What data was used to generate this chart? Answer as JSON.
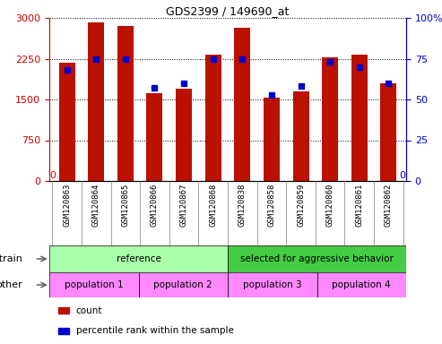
{
  "title": "GDS2399 / 149690_at",
  "samples": [
    "GSM120863",
    "GSM120864",
    "GSM120865",
    "GSM120866",
    "GSM120867",
    "GSM120868",
    "GSM120838",
    "GSM120858",
    "GSM120859",
    "GSM120860",
    "GSM120861",
    "GSM120862"
  ],
  "counts": [
    2175,
    2920,
    2850,
    1620,
    1700,
    2320,
    2820,
    1530,
    1650,
    2280,
    2320,
    1790
  ],
  "percentile_ranks": [
    68,
    75,
    75,
    57,
    60,
    75,
    75,
    53,
    58,
    73,
    70,
    60
  ],
  "ylim_left": [
    0,
    3000
  ],
  "ylim_right": [
    0,
    100
  ],
  "yticks_left": [
    0,
    750,
    1500,
    2250,
    3000
  ],
  "yticks_right": [
    0,
    25,
    50,
    75,
    100
  ],
  "strain_groups": [
    {
      "label": "reference",
      "start": 0,
      "end": 6,
      "color": "#AAFFAA"
    },
    {
      "label": "selected for aggressive behavior",
      "start": 6,
      "end": 12,
      "color": "#44CC44"
    }
  ],
  "other_groups": [
    {
      "label": "population 1",
      "start": 0,
      "end": 3,
      "color": "#FF88FF"
    },
    {
      "label": "population 2",
      "start": 3,
      "end": 6,
      "color": "#FF88FF"
    },
    {
      "label": "population 3",
      "start": 6,
      "end": 9,
      "color": "#FF88FF"
    },
    {
      "label": "population 4",
      "start": 9,
      "end": 12,
      "color": "#FF88FF"
    }
  ],
  "bar_color": "#BB1100",
  "dot_color": "#0000CC",
  "background_color": "#FFFFFF",
  "plot_bg_color": "#FFFFFF",
  "tick_area_bg": "#CCCCCC",
  "left_tick_color": "#CC0000",
  "right_tick_color": "#0000CC",
  "strain_label": "strain",
  "other_label": "other",
  "legend_items": [
    {
      "label": "count",
      "color": "#BB1100"
    },
    {
      "label": "percentile rank within the sample",
      "color": "#0000CC"
    }
  ]
}
